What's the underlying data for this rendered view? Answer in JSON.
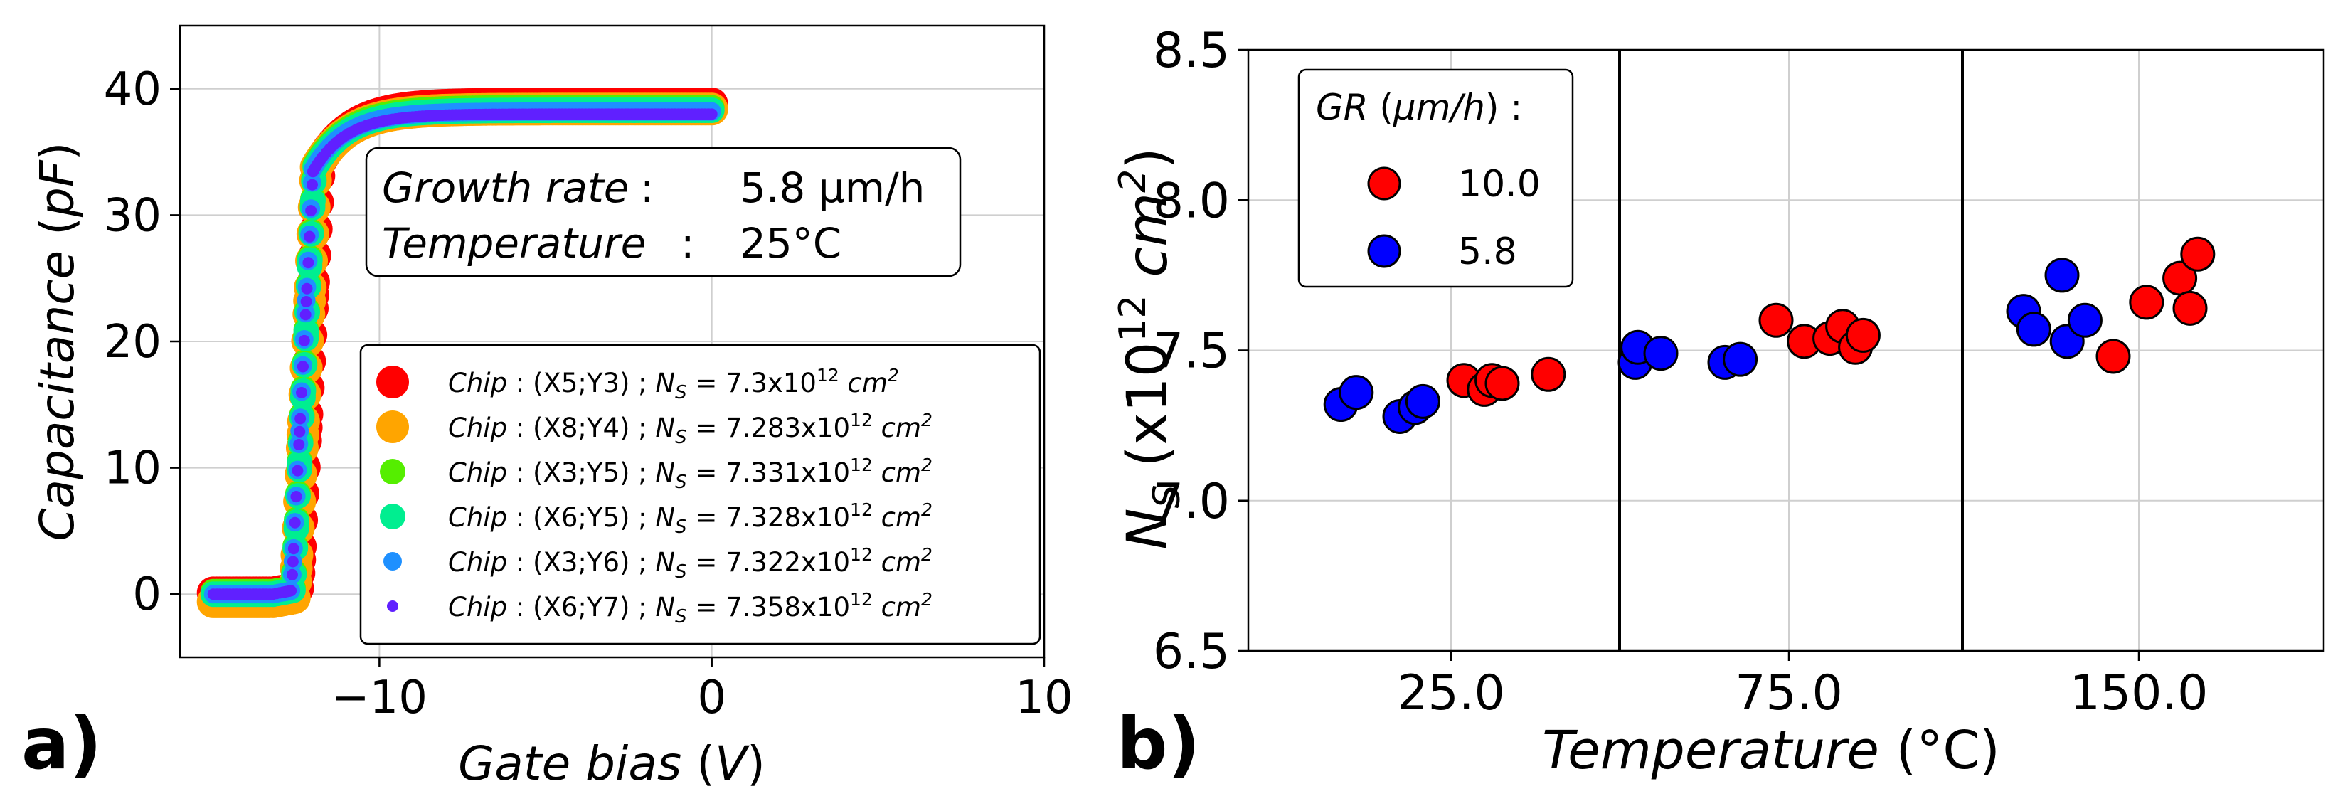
{
  "chart_data": [
    {
      "panel_label": "a)",
      "type": "scatter",
      "xlabel": "Gate bias (V)",
      "ylabel": "Capacitance (pF)",
      "xlim": [
        -16,
        10
      ],
      "ylim": [
        -5,
        45
      ],
      "xticks": [
        -10,
        0,
        10
      ],
      "xtick_labels": [
        "−10",
        "0",
        "10"
      ],
      "yticks": [
        0,
        10,
        20,
        30,
        40
      ],
      "ytick_labels": [
        "0",
        "10",
        "20",
        "30",
        "40"
      ],
      "grid": true,
      "annotation": {
        "line1_label": "Growth rate",
        "line1_value": "5.8 μm/h",
        "line2_label": "Temperature",
        "line2_value": "25°C"
      },
      "legend_position": "lower-right",
      "series": [
        {
          "name": "Chip : (X5;Y3) ; NS = 7.3x10^12 cm^2",
          "chip_label": "Chip",
          "coords": "(X5;Y3)",
          "ns_symbol": "N",
          "ns_sub": "S",
          "ns_mantissa": "7.3x10",
          "ns_exp": "12",
          "ns_unit": "cm",
          "ns_unit_exp": "2",
          "color": "#ff0000",
          "marker": "large",
          "vth": -12.1,
          "cmax": 38.8,
          "cmin": 0.1
        },
        {
          "name": "Chip : (X8;Y4) ; NS = 7.283x10^12 cm^2",
          "chip_label": "Chip",
          "coords": "(X8;Y4)",
          "ns_symbol": "N",
          "ns_sub": "S",
          "ns_mantissa": "7.283x10",
          "ns_exp": "12",
          "ns_unit": "cm",
          "ns_unit_exp": "2",
          "color": "#ffa500",
          "marker": "large",
          "vth": -12.2,
          "cmax": 38.4,
          "cmin": -0.6
        },
        {
          "name": "Chip : (X3;Y5) ; NS = 7.331x10^12 cm^2",
          "chip_label": "Chip",
          "coords": "(X3;Y5)",
          "ns_symbol": "N",
          "ns_sub": "S",
          "ns_mantissa": "7.331x10",
          "ns_exp": "12",
          "ns_unit": "cm",
          "ns_unit_exp": "2",
          "color": "#55ee00",
          "marker": "medium",
          "vth": -12.25,
          "cmax": 38.5,
          "cmin": 0.2
        },
        {
          "name": "Chip : (X6;Y5) ; NS = 7.328x10^12 cm^2",
          "chip_label": "Chip",
          "coords": "(X6;Y5)",
          "ns_symbol": "N",
          "ns_sub": "S",
          "ns_mantissa": "7.328x10",
          "ns_exp": "12",
          "ns_unit": "cm",
          "ns_unit_exp": "2",
          "color": "#00ee90",
          "marker": "medium",
          "vth": -12.25,
          "cmax": 38.3,
          "cmin": 0.0
        },
        {
          "name": "Chip : (X3;Y6) ; NS = 7.322x10^12 cm^2",
          "chip_label": "Chip",
          "coords": "(X3;Y6)",
          "ns_symbol": "N",
          "ns_sub": "S",
          "ns_mantissa": "7.322x10",
          "ns_exp": "12",
          "ns_unit": "cm",
          "ns_unit_exp": "2",
          "color": "#1e90ff",
          "marker": "small",
          "vth": -12.3,
          "cmax": 38.2,
          "cmin": 0.0
        },
        {
          "name": "Chip : (X6;Y7) ; NS = 7.358x10^12 cm^2",
          "chip_label": "Chip",
          "coords": "(X6;Y7)",
          "ns_symbol": "N",
          "ns_sub": "S",
          "ns_mantissa": "7.358x10",
          "ns_exp": "12",
          "ns_unit": "cm",
          "ns_unit_exp": "2",
          "color": "#6020ff",
          "marker": "tiny",
          "vth": -12.3,
          "cmax": 38.0,
          "cmin": 0.0
        }
      ]
    },
    {
      "panel_label": "b)",
      "type": "scatter",
      "xlabel": "Temperature (°C)",
      "ylabel": "NS (x10^12 cm^2)",
      "ylabel_parts": {
        "sym": "N",
        "sub": "S",
        "pre": " (x10",
        "exp": "12",
        "unit": " cm",
        "unit_exp": "2",
        "post": ")"
      },
      "categories": [
        "25.0",
        "75.0",
        "150.0"
      ],
      "ylim": [
        6.5,
        8.5
      ],
      "yticks": [
        6.5,
        7.0,
        7.5,
        8.0,
        8.5
      ],
      "ytick_labels": [
        "6.5",
        "7.0",
        "7.5",
        "8.0",
        "8.5"
      ],
      "grid": true,
      "legend_title": "GR (μm/h) :",
      "legend_position": "upper-left",
      "series": [
        {
          "name": "10.0",
          "color": "#ff0000",
          "points": [
            {
              "category": "25.0",
              "x_offset": 0.05,
              "y": 7.4
            },
            {
              "category": "25.0",
              "x_offset": 0.13,
              "y": 7.37
            },
            {
              "category": "25.0",
              "x_offset": 0.16,
              "y": 7.4
            },
            {
              "category": "25.0",
              "x_offset": 0.2,
              "y": 7.39
            },
            {
              "category": "25.0",
              "x_offset": 0.38,
              "y": 7.42
            },
            {
              "category": "75.0",
              "x_offset": -0.05,
              "y": 7.6
            },
            {
              "category": "75.0",
              "x_offset": 0.06,
              "y": 7.53
            },
            {
              "category": "75.0",
              "x_offset": 0.16,
              "y": 7.54
            },
            {
              "category": "75.0",
              "x_offset": 0.21,
              "y": 7.58
            },
            {
              "category": "75.0",
              "x_offset": 0.26,
              "y": 7.51
            },
            {
              "category": "75.0",
              "x_offset": 0.29,
              "y": 7.55
            },
            {
              "category": "150.0",
              "x_offset": -0.1,
              "y": 7.48
            },
            {
              "category": "150.0",
              "x_offset": 0.03,
              "y": 7.66
            },
            {
              "category": "150.0",
              "x_offset": 0.16,
              "y": 7.74
            },
            {
              "category": "150.0",
              "x_offset": 0.2,
              "y": 7.64
            },
            {
              "category": "150.0",
              "x_offset": 0.23,
              "y": 7.82
            }
          ]
        },
        {
          "name": "5.8",
          "color": "#0000ff",
          "points": [
            {
              "category": "25.0",
              "x_offset": -0.43,
              "y": 7.32
            },
            {
              "category": "25.0",
              "x_offset": -0.37,
              "y": 7.36
            },
            {
              "category": "25.0",
              "x_offset": -0.2,
              "y": 7.28
            },
            {
              "category": "25.0",
              "x_offset": -0.14,
              "y": 7.31
            },
            {
              "category": "25.0",
              "x_offset": -0.11,
              "y": 7.33
            },
            {
              "category": "75.0",
              "x_offset": -0.6,
              "y": 7.46
            },
            {
              "category": "75.0",
              "x_offset": -0.59,
              "y": 7.51
            },
            {
              "category": "75.0",
              "x_offset": -0.5,
              "y": 7.49
            },
            {
              "category": "75.0",
              "x_offset": -0.25,
              "y": 7.46
            },
            {
              "category": "75.0",
              "x_offset": -0.19,
              "y": 7.47
            },
            {
              "category": "150.0",
              "x_offset": -0.45,
              "y": 7.63
            },
            {
              "category": "150.0",
              "x_offset": -0.41,
              "y": 7.57
            },
            {
              "category": "150.0",
              "x_offset": -0.3,
              "y": 7.75
            },
            {
              "category": "150.0",
              "x_offset": -0.28,
              "y": 7.53
            },
            {
              "category": "150.0",
              "x_offset": -0.21,
              "y": 7.6
            }
          ]
        }
      ]
    }
  ]
}
